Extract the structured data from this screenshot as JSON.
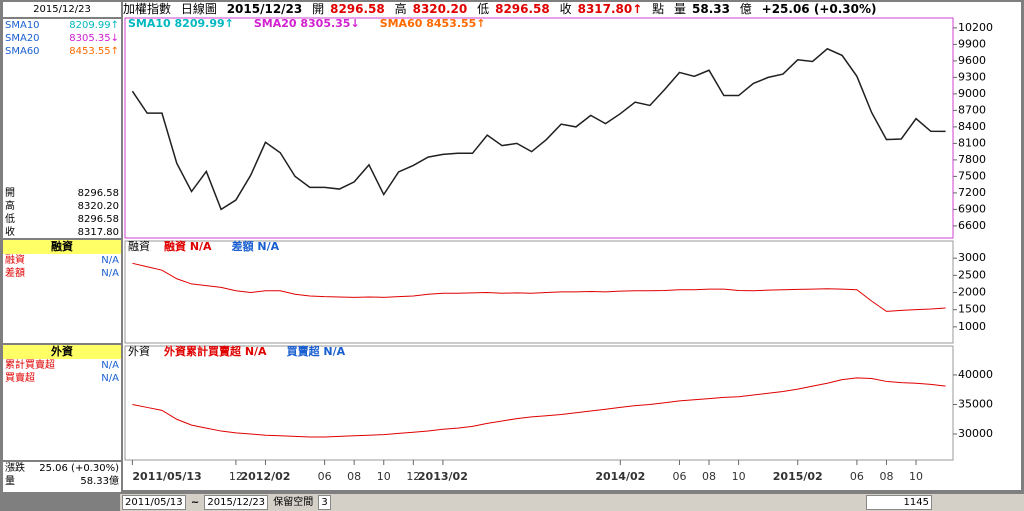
{
  "header": {
    "left_date": "2015/12/23",
    "name": "加權指數",
    "period": "日線圖",
    "date": "2015/12/23",
    "open_label": "開",
    "open": "8296.58",
    "high_label": "高",
    "high": "8320.20",
    "low_label": "低",
    "low": "8296.58",
    "close_label": "收",
    "close": "8317.80↑",
    "unit": "點",
    "volume_label": "量",
    "volume": "58.33",
    "volume_unit": "億",
    "change": "+25.06 (+0.30%)"
  },
  "left_panel": {
    "sma": [
      {
        "name": "SMA10",
        "value": "8209.99↑"
      },
      {
        "name": "SMA20",
        "value": "8305.35↓"
      },
      {
        "name": "SMA60",
        "value": "8453.55↑"
      }
    ],
    "quote": [
      [
        "開",
        "8296.58"
      ],
      [
        "高",
        "8320.20"
      ],
      [
        "低",
        "8296.58"
      ],
      [
        "收",
        "8317.80"
      ]
    ],
    "margin_title": "融資",
    "margin_rows": [
      [
        "融資",
        "N/A"
      ],
      [
        "差額",
        "N/A"
      ]
    ],
    "foreign_title": "外資",
    "foreign_rows": [
      [
        "累計買賣超",
        "N/A"
      ],
      [
        "買賣超",
        "N/A"
      ]
    ],
    "footer": [
      [
        "漲跌",
        "25.06 (+0.30%)"
      ],
      [
        "量",
        "58.33億"
      ]
    ]
  },
  "chart_data": [
    {
      "type": "line",
      "legend": [
        {
          "text": "SMA10 8209.99↑",
          "color": "#00b8c0"
        },
        {
          "text": "SMA20 8305.35↓",
          "color": "#d020d0"
        },
        {
          "text": "SMA60 8453.55↑",
          "color": "#ff6a00"
        }
      ],
      "categories": [
        "2011/05/13",
        null,
        null,
        null,
        null,
        null,
        null,
        "12",
        null,
        "2012/02",
        null,
        null,
        null,
        "06",
        null,
        "08",
        null,
        "10",
        null,
        "12",
        null,
        "2013/02",
        null,
        null,
        null,
        null,
        null,
        null,
        null,
        null,
        null,
        null,
        null,
        "2014/02",
        null,
        null,
        null,
        "06",
        null,
        "08",
        null,
        "10",
        null,
        null,
        null,
        "2015/02",
        null,
        null,
        null,
        "06",
        null,
        "08",
        null,
        "10",
        null,
        null
      ],
      "color": "#202020",
      "values": [
        9050,
        8650,
        8650,
        7740,
        7225,
        7590,
        6900,
        7070,
        7520,
        8120,
        7930,
        7500,
        7300,
        7300,
        7270,
        7400,
        7710,
        7170,
        7580,
        7700,
        7850,
        7900,
        7920,
        7920,
        8250,
        8060,
        8100,
        7950,
        8170,
        8450,
        8400,
        8610,
        8460,
        8640,
        8850,
        8790,
        9080,
        9390,
        9320,
        9430,
        8970,
        8970,
        9190,
        9300,
        9360,
        9620,
        9590,
        9820,
        9700,
        9320,
        8660,
        8170,
        8180,
        8550,
        8320,
        8318
      ],
      "ylim": [
        6380,
        10380
      ],
      "yticks": [
        6600,
        6900,
        7200,
        7500,
        7800,
        8100,
        8400,
        8700,
        9000,
        9300,
        9600,
        9900,
        10200
      ]
    },
    {
      "type": "line",
      "panel_label": "融資",
      "legend": [
        {
          "text": "融資 N/A",
          "color": "#e00000"
        },
        {
          "text": "差額 N/A",
          "color": "#1a5fd0"
        }
      ],
      "color": "#e00000",
      "values": [
        2850,
        2750,
        2650,
        2400,
        2250,
        2200,
        2150,
        2050,
        2000,
        2050,
        2050,
        1950,
        1900,
        1880,
        1870,
        1860,
        1870,
        1860,
        1880,
        1900,
        1950,
        1980,
        1980,
        1990,
        2000,
        1980,
        1990,
        1980,
        2000,
        2020,
        2020,
        2030,
        2020,
        2040,
        2050,
        2050,
        2060,
        2080,
        2080,
        2100,
        2100,
        2060,
        2050,
        2070,
        2080,
        2090,
        2100,
        2110,
        2100,
        2080,
        1750,
        1450,
        1480,
        1500,
        1520,
        1550
      ],
      "ylim": [
        530,
        3500
      ],
      "yticks": [
        1000,
        1500,
        2000,
        2500,
        3000
      ]
    },
    {
      "type": "line",
      "panel_label": "外資",
      "legend": [
        {
          "text": "外資累計買賣超 N/A",
          "color": "#e00000"
        },
        {
          "text": "買賣超 N/A",
          "color": "#1a5fd0"
        }
      ],
      "color": "#e00000",
      "values": [
        35000,
        34500,
        34000,
        32500,
        31500,
        31000,
        30500,
        30200,
        30000,
        29800,
        29700,
        29600,
        29500,
        29500,
        29600,
        29700,
        29800,
        29900,
        30100,
        30300,
        30500,
        30800,
        31000,
        31300,
        31800,
        32200,
        32600,
        32900,
        33100,
        33300,
        33600,
        33900,
        34200,
        34500,
        34800,
        35000,
        35300,
        35600,
        35800,
        36000,
        36200,
        36300,
        36600,
        36900,
        37200,
        37600,
        38100,
        38600,
        39200,
        39500,
        39400,
        38900,
        38700,
        38600,
        38400,
        38100
      ],
      "ylim": [
        25600,
        44900
      ],
      "yticks": [
        30000,
        35000,
        40000
      ]
    }
  ],
  "toolbar": {
    "from": "2011/05/13",
    "sep": "~",
    "to": "2015/12/23",
    "space_label": "保留空間",
    "space": "3",
    "count": "1145"
  }
}
